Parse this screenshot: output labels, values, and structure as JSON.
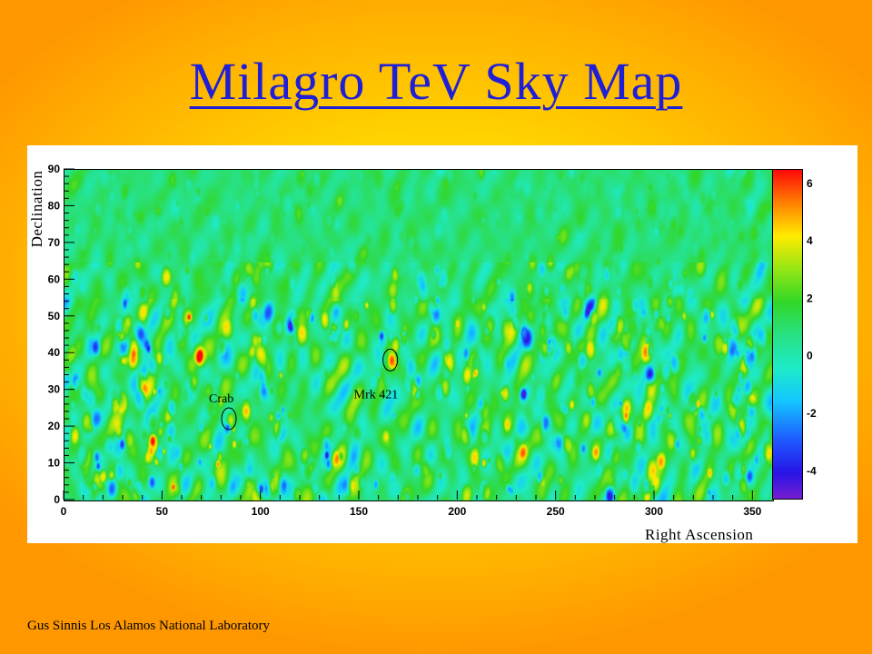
{
  "slide": {
    "title": "Milagro TeV Sky Map",
    "footer": "Gus Sinnis Los Alamos National Laboratory"
  },
  "chart_data": {
    "type": "heatmap",
    "title": "Milagro TeV Sky Map",
    "xlabel": "Right Ascension",
    "ylabel": "Declination",
    "xlim": [
      0,
      360
    ],
    "ylim": [
      0,
      90
    ],
    "x_ticks": [
      0,
      50,
      100,
      150,
      200,
      250,
      300,
      350
    ],
    "y_ticks": [
      0,
      10,
      20,
      30,
      40,
      50,
      60,
      70,
      80,
      90
    ],
    "colorbar": {
      "range": [
        -5,
        6.5
      ],
      "ticks": [
        -4,
        -2,
        0,
        2,
        4,
        6
      ]
    },
    "annotations": [
      {
        "label": "Crab",
        "ra": 84,
        "dec": 22
      },
      {
        "label": "Mrk 421",
        "ra": 166,
        "dec": 38
      }
    ],
    "grid": false,
    "legend": "colorbar-right"
  }
}
